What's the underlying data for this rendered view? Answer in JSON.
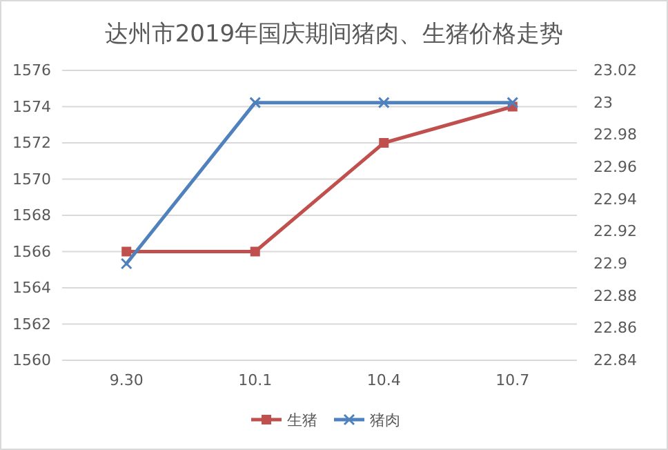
{
  "chart_data": {
    "type": "line",
    "title": "达州市2019年国庆期间猪肉、生猪价格走势",
    "categories": [
      "9.30",
      "10.1",
      "10.4",
      "10.7"
    ],
    "series": [
      {
        "name": "生猪",
        "color": "#c0504d",
        "values": [
          1566,
          1566,
          1572,
          1574
        ],
        "marker": "square"
      },
      {
        "name": "猪肉",
        "color": "#4f81bd",
        "values": [
          22.9,
          23,
          23,
          23
        ],
        "axis": "y2",
        "marker": "cross"
      }
    ],
    "ylim": [
      1560,
      1576
    ],
    "yticks": [
      1560,
      1562,
      1564,
      1566,
      1568,
      1570,
      1572,
      1574,
      1576
    ],
    "y2lim": [
      22.84,
      23.02
    ],
    "y2ticks": [
      {
        "value": 22.84,
        "label": "22.84"
      },
      {
        "value": 22.86,
        "label": "22.86"
      },
      {
        "value": 22.88,
        "label": "22.88"
      },
      {
        "value": 22.9,
        "label": "22.9"
      },
      {
        "value": 22.92,
        "label": "22.92"
      },
      {
        "value": 22.94,
        "label": "22.94"
      },
      {
        "value": 22.96,
        "label": "22.96"
      },
      {
        "value": 22.98,
        "label": "22.98"
      },
      {
        "value": 23,
        "label": "23"
      },
      {
        "value": 23.02,
        "label": "23.02"
      }
    ],
    "grid": "y",
    "legend": "bottom",
    "line_style": "solid"
  }
}
